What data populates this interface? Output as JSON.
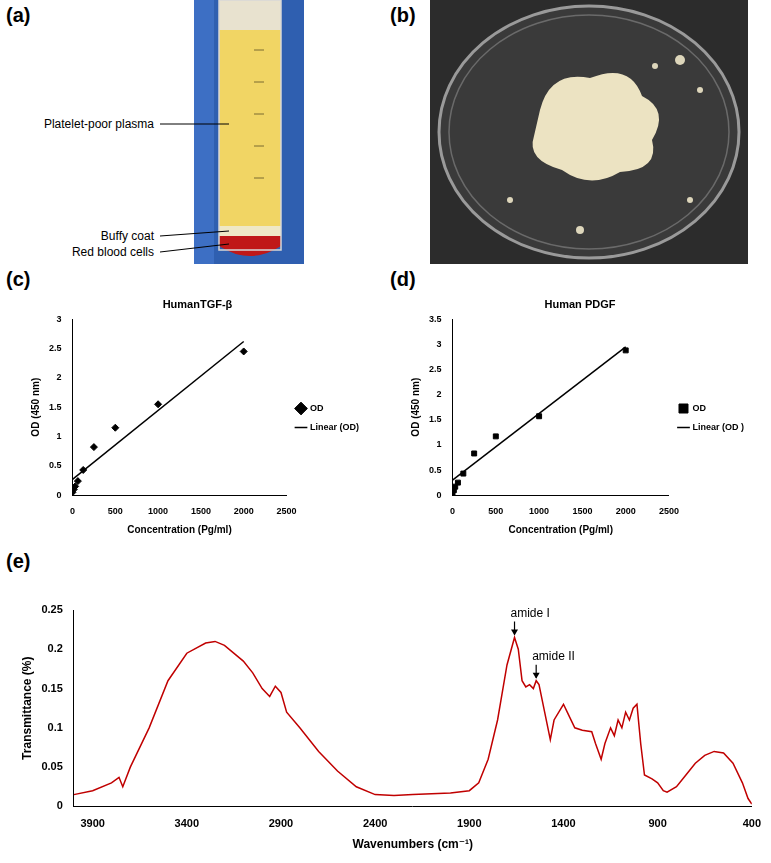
{
  "photos": [
    {
      "panel": "(a)",
      "labels": [
        "Platelet-poor plasma",
        "Buffy coat",
        "Red blood cells"
      ]
    },
    {
      "panel": "(b)"
    }
  ],
  "chart_data": [
    {
      "panel": "(c)",
      "type": "scatter",
      "title": "HumanTGF-β",
      "x_label": "Concentration (Pg/ml)",
      "y_label": "OD (450 nm)",
      "xlim": [
        0,
        2500
      ],
      "xticks": [
        0,
        500,
        1000,
        1500,
        2000,
        2500
      ],
      "ylim": [
        0,
        3
      ],
      "yticks": [
        0,
        0.5,
        1,
        1.5,
        2,
        2.5,
        3
      ],
      "grid": false,
      "legend": "right",
      "series": [
        {
          "name": "OD",
          "type": "scatter",
          "marker": "diamond",
          "color": "#000000",
          "x": [
            0,
            15.6,
            31.25,
            62.5,
            125,
            250,
            500,
            1000,
            2000
          ],
          "values": [
            0.05,
            0.1,
            0.15,
            0.24,
            0.43,
            0.82,
            1.15,
            1.55,
            2.45
          ]
        },
        {
          "name": "Linear (OD)",
          "type": "line",
          "line_style": "solid",
          "color": "#000000",
          "x": [
            0,
            2000
          ],
          "values": [
            0.27,
            2.62
          ]
        }
      ]
    },
    {
      "panel": "(d)",
      "type": "scatter",
      "title": "Human PDGF",
      "x_label": "Concentration (Pg/ml)",
      "y_label": "OD (450 nm)",
      "xlim": [
        0,
        2500
      ],
      "xticks": [
        0,
        500,
        1000,
        1500,
        2000,
        2500
      ],
      "ylim": [
        0,
        3.5
      ],
      "yticks": [
        0,
        0.5,
        1,
        1.5,
        2,
        2.5,
        3,
        3.5
      ],
      "grid": false,
      "legend": "right",
      "series": [
        {
          "name": "OD",
          "type": "scatter",
          "marker": "square",
          "color": "#000000",
          "x": [
            0,
            15.6,
            31.25,
            62.5,
            125,
            250,
            500,
            1000,
            2000
          ],
          "values": [
            0.05,
            0.1,
            0.17,
            0.25,
            0.43,
            0.83,
            1.17,
            1.57,
            2.88
          ]
        },
        {
          "name": "Linear (OD )",
          "type": "line",
          "line_style": "solid",
          "color": "#000000",
          "x": [
            0,
            2000
          ],
          "values": [
            0.3,
            2.95
          ]
        }
      ]
    },
    {
      "panel": "(e)",
      "type": "line",
      "x_label": "Wavenumbers (cm⁻¹)",
      "y_label": "Transmittance (%)",
      "xlim": [
        4000,
        400
      ],
      "xticks": [
        3900,
        3400,
        2900,
        2400,
        1900,
        1400,
        900,
        400
      ],
      "ylim": [
        0,
        0.25
      ],
      "yticks": [
        0,
        0.05,
        0.1,
        0.15,
        0.2,
        0.25
      ],
      "grid": false,
      "color": "#c00000",
      "x": [
        4000,
        3900,
        3800,
        3760,
        3740,
        3700,
        3600,
        3500,
        3400,
        3300,
        3250,
        3200,
        3100,
        3050,
        3000,
        2960,
        2930,
        2900,
        2870,
        2800,
        2700,
        2600,
        2500,
        2400,
        2300,
        2200,
        2100,
        2000,
        1900,
        1850,
        1800,
        1750,
        1700,
        1660,
        1640,
        1620,
        1600,
        1580,
        1560,
        1545,
        1530,
        1500,
        1470,
        1450,
        1400,
        1380,
        1340,
        1300,
        1250,
        1230,
        1200,
        1180,
        1150,
        1130,
        1110,
        1090,
        1070,
        1050,
        1030,
        1010,
        990,
        970,
        930,
        900,
        870,
        850,
        800,
        750,
        700,
        650,
        600,
        550,
        500,
        450,
        420,
        400
      ],
      "values": [
        0.015,
        0.02,
        0.03,
        0.037,
        0.025,
        0.05,
        0.1,
        0.16,
        0.195,
        0.208,
        0.21,
        0.205,
        0.185,
        0.17,
        0.15,
        0.14,
        0.153,
        0.145,
        0.12,
        0.1,
        0.07,
        0.045,
        0.025,
        0.015,
        0.014,
        0.015,
        0.016,
        0.017,
        0.02,
        0.03,
        0.06,
        0.11,
        0.18,
        0.215,
        0.2,
        0.16,
        0.152,
        0.155,
        0.15,
        0.16,
        0.155,
        0.12,
        0.085,
        0.11,
        0.13,
        0.12,
        0.1,
        0.097,
        0.095,
        0.08,
        0.06,
        0.08,
        0.1,
        0.09,
        0.11,
        0.1,
        0.12,
        0.11,
        0.125,
        0.13,
        0.08,
        0.04,
        0.035,
        0.03,
        0.02,
        0.018,
        0.025,
        0.04,
        0.055,
        0.065,
        0.07,
        0.068,
        0.055,
        0.03,
        0.01,
        0.003
      ],
      "annotations": [
        {
          "text": "amide I",
          "x": 1660,
          "y": 0.215
        },
        {
          "text": "amide II",
          "x": 1545,
          "y": 0.16
        }
      ]
    }
  ]
}
